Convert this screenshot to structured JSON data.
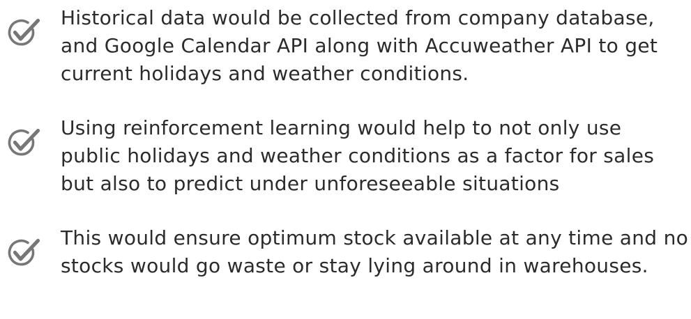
{
  "bullets": [
    {
      "icon": "checkmark-circle-icon",
      "lines": [
        "Historical data would be collected from company database,",
        "and Google Calendar API along with Accuweather API to get",
        "current holidays and weather conditions."
      ]
    },
    {
      "icon": "checkmark-circle-icon",
      "lines": [
        "Using reinforcement learning would help to not only use",
        "public holidays and weather conditions as a factor for sales",
        "but also to predict under unforeseeable situations"
      ]
    },
    {
      "icon": "checkmark-circle-icon",
      "lines": [
        "This would ensure optimum stock available at any time and no",
        "stocks would go waste or stay lying around in warehouses."
      ]
    }
  ],
  "colors": {
    "text": "#2b2b2b",
    "icon": "#777777",
    "background": "#ffffff"
  }
}
